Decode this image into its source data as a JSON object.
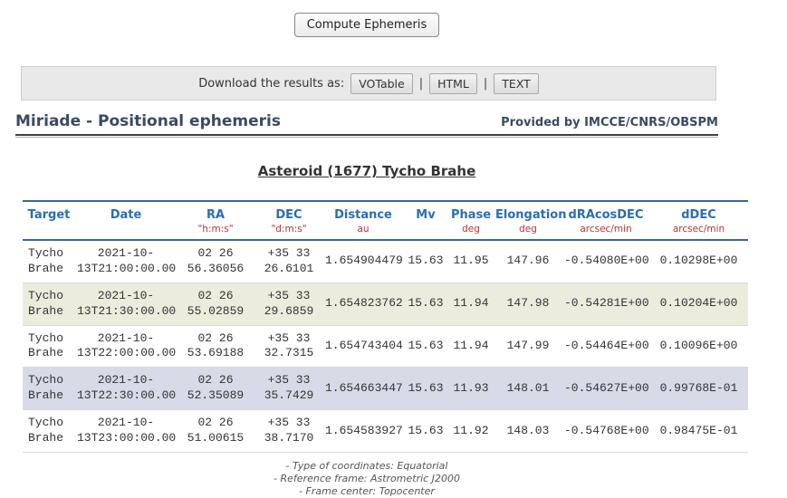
{
  "compute_button": "Compute Ephemeris",
  "download_bar": {
    "label": "Download the results as:",
    "separator": "|",
    "formats": [
      "VOTable",
      "HTML",
      "TEXT"
    ]
  },
  "header": {
    "title": "Miriade - Positional ephemeris",
    "provider": "Provided by IMCCE/CNRS/OBSPM"
  },
  "target_title": "Asteroid (1677) Tycho Brahe",
  "table": {
    "columns": [
      {
        "id": "target",
        "label": "Target",
        "unit": ""
      },
      {
        "id": "date",
        "label": "Date",
        "unit": ""
      },
      {
        "id": "ra",
        "label": "RA",
        "unit": "\"h:m:s\""
      },
      {
        "id": "dec",
        "label": "DEC",
        "unit": "\"d:m:s\""
      },
      {
        "id": "distance",
        "label": "Distance",
        "unit": "au"
      },
      {
        "id": "mv",
        "label": "Mv",
        "unit": ""
      },
      {
        "id": "phase",
        "label": "Phase",
        "unit": "deg"
      },
      {
        "id": "elongation",
        "label": "Elongation",
        "unit": "deg"
      },
      {
        "id": "dracosdec",
        "label": "dRAcosDEC",
        "unit": "arcsec/min"
      },
      {
        "id": "ddec",
        "label": "dDEC",
        "unit": "arcsec/min"
      }
    ],
    "rows": [
      [
        "Tycho\nBrahe",
        "2021-10-\n13T21:00:00.00",
        "02 26\n56.36056",
        "+35 33\n26.6101",
        "1.654904479",
        "15.63",
        "11.95",
        "147.96",
        "-0.54080E+00",
        "0.10298E+00"
      ],
      [
        "Tycho\nBrahe",
        "2021-10-\n13T21:30:00.00",
        "02 26\n55.02859",
        "+35 33\n29.6859",
        "1.654823762",
        "15.63",
        "11.94",
        "147.98",
        "-0.54281E+00",
        "0.10204E+00"
      ],
      [
        "Tycho\nBrahe",
        "2021-10-\n13T22:00:00.00",
        "02 26\n53.69188",
        "+35 33\n32.7315",
        "1.654743404",
        "15.63",
        "11.94",
        "147.99",
        "-0.54464E+00",
        "0.10096E+00"
      ],
      [
        "Tycho\nBrahe",
        "2021-10-\n13T22:30:00.00",
        "02 26\n52.35089",
        "+35 33\n35.7429",
        "1.654663447",
        "15.63",
        "11.93",
        "148.01",
        "-0.54627E+00",
        "0.99768E-01"
      ],
      [
        "Tycho\nBrahe",
        "2021-10-\n13T23:00:00.00",
        "02 26\n51.00615",
        "+35 33\n38.7170",
        "1.654583927",
        "15.63",
        "11.92",
        "148.03",
        "-0.54768E+00",
        "0.98475E-01"
      ]
    ]
  },
  "footnotes": [
    "- Type of coordinates: Equatorial",
    "- Reference frame: Astrometric J2000",
    "- Frame center: Topocenter"
  ],
  "colors": {
    "accent-blue": "#2a6db4",
    "line-blue": "#39679b",
    "unit-red": "#bb3333",
    "heading-navy": "#3b4a63",
    "row-beige": "#ececdc",
    "row-lavender": "#d8dae7",
    "bar-gray": "#e9e9e9",
    "foot-gray": "#555555"
  }
}
